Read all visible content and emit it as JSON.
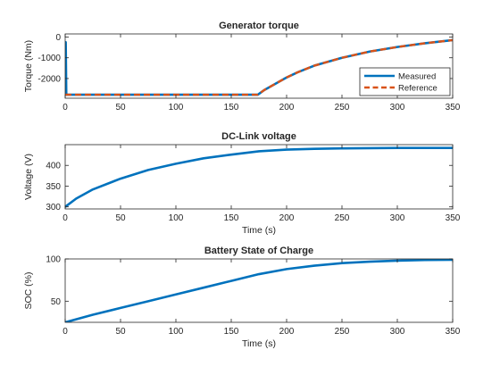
{
  "figure": {
    "background": "#ffffff",
    "colors": {
      "measured": "#0072BD",
      "reference": "#D95319",
      "axis": "#262626",
      "grid": "#dfdfdf"
    }
  },
  "chart_data": [
    {
      "type": "line",
      "title": "Generator torque",
      "xlabel": "",
      "ylabel": "Torque (Nm)",
      "xlim": [
        0,
        350
      ],
      "ylim": [
        -2950,
        150
      ],
      "xticks": [
        0,
        50,
        100,
        150,
        200,
        250,
        300,
        350
      ],
      "yticks": [
        -2000,
        -1000,
        0
      ],
      "xtick_labels": [
        "0",
        "50",
        "100",
        "150",
        "200",
        "250",
        "300",
        "350"
      ],
      "ytick_labels": [
        "-2000",
        "-1000",
        "0"
      ],
      "grid": false,
      "legend": {
        "placement": "bottom-right",
        "entries": [
          "Measured",
          "Reference"
        ]
      },
      "series": [
        {
          "name": "Measured",
          "style": "solid",
          "color": "#0072BD",
          "x": [
            0,
            0.5,
            1,
            1.5,
            10,
            50,
            100,
            150,
            174,
            180,
            190,
            200,
            210,
            225,
            250,
            275,
            300,
            325,
            350
          ],
          "y": [
            -2780,
            -250,
            -2780,
            -2780,
            -2780,
            -2780,
            -2780,
            -2780,
            -2780,
            -2550,
            -2250,
            -1950,
            -1700,
            -1380,
            -1000,
            -700,
            -480,
            -300,
            -150
          ]
        },
        {
          "name": "Reference",
          "style": "dashed",
          "color": "#D95319",
          "x": [
            0,
            10,
            50,
            100,
            150,
            174,
            180,
            190,
            200,
            210,
            225,
            250,
            275,
            300,
            325,
            350
          ],
          "y": [
            -2780,
            -2780,
            -2780,
            -2780,
            -2780,
            -2780,
            -2550,
            -2250,
            -1950,
            -1700,
            -1380,
            -1000,
            -700,
            -480,
            -300,
            -150
          ]
        }
      ]
    },
    {
      "type": "line",
      "title": "DC-Link voltage",
      "xlabel": "Time (s)",
      "ylabel": "Voltage (V)",
      "xlim": [
        0,
        350
      ],
      "ylim": [
        295,
        450
      ],
      "xticks": [
        0,
        50,
        100,
        150,
        200,
        250,
        300,
        350
      ],
      "yticks": [
        300,
        350,
        400
      ],
      "xtick_labels": [
        "0",
        "50",
        "100",
        "150",
        "200",
        "250",
        "300",
        "350"
      ],
      "ytick_labels": [
        "300",
        "350",
        "400"
      ],
      "grid": false,
      "series": [
        {
          "style": "solid",
          "color": "#0072BD",
          "x": [
            0,
            10,
            25,
            50,
            75,
            100,
            125,
            150,
            175,
            200,
            225,
            250,
            300,
            350
          ],
          "y": [
            300,
            320,
            342,
            368,
            389,
            404,
            417,
            426,
            434,
            438,
            440,
            441,
            442,
            442
          ]
        }
      ]
    },
    {
      "type": "line",
      "title": "Battery State of Charge",
      "xlabel": "Time (s)",
      "ylabel": "SOC (%)",
      "xlim": [
        0,
        350
      ],
      "ylim": [
        25,
        100
      ],
      "xticks": [
        0,
        50,
        100,
        150,
        200,
        250,
        300,
        350
      ],
      "yticks": [
        50,
        100
      ],
      "xtick_labels": [
        "0",
        "50",
        "100",
        "150",
        "200",
        "250",
        "300",
        "350"
      ],
      "ytick_labels": [
        "50",
        "100"
      ],
      "grid": false,
      "series": [
        {
          "style": "solid",
          "color": "#0072BD",
          "x": [
            0,
            25,
            50,
            75,
            100,
            125,
            150,
            175,
            200,
            225,
            250,
            275,
            300,
            325,
            350
          ],
          "y": [
            25,
            34,
            42,
            50,
            58,
            66,
            74,
            82,
            88,
            92,
            95,
            96.8,
            98,
            98.7,
            99
          ]
        }
      ]
    }
  ]
}
